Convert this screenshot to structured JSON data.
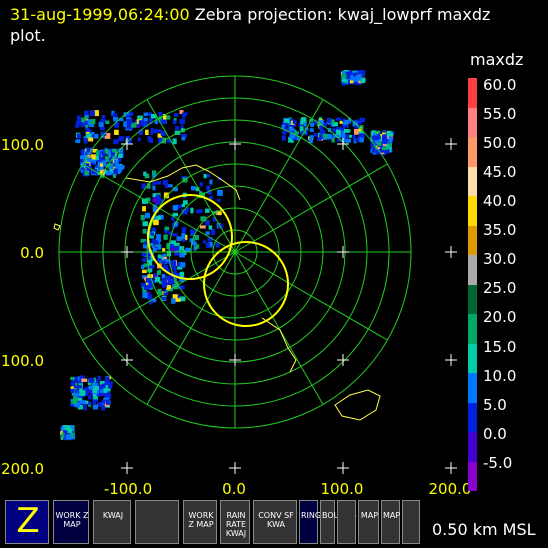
{
  "header": {
    "timestamp": "31-aug-1999,06:24:00",
    "title": "Zebra projection: kwaj_lowprf maxdz",
    "title_line2": "plot."
  },
  "axes": {
    "y_labels": [
      "100.0",
      "0.0",
      "100.0",
      "200.0"
    ],
    "x_labels": [
      "-100.0",
      "0.0",
      "100.0",
      "200.0"
    ]
  },
  "colorbar": {
    "title": "maxdz",
    "labels": [
      "60.0",
      "55.0",
      "50.0",
      "45.0",
      "40.0",
      "35.0",
      "30.0",
      "25.0",
      "20.0",
      "15.0",
      "10.0",
      "5.0",
      "0.0",
      "-5.0"
    ],
    "colors": [
      "#ff4040",
      "#ff8080",
      "#ff9966",
      "#ffddaa",
      "#ffdd00",
      "#dd9900",
      "#aaaaaa",
      "#006633",
      "#00aa66",
      "#00ccaa",
      "#0077ff",
      "#0022dd",
      "#4400cc",
      "#8800cc"
    ]
  },
  "buttonbar": {
    "buttons": [
      {
        "name": "zebra-logo-button",
        "label": "Z"
      },
      {
        "name": "work-z-map-button",
        "label": "WORK Z MAP"
      },
      {
        "name": "kwaj-grid-button",
        "label": "KWAJ"
      },
      {
        "name": "radar-sweep-button",
        "label": ""
      },
      {
        "name": "work-z-map2-button",
        "label": "WORK Z MAP"
      },
      {
        "name": "rain-rate-button",
        "label": "RAIN RATE KWAJ"
      },
      {
        "name": "conv-sf-button",
        "label": "CONV SF KWA"
      },
      {
        "name": "rings-button",
        "label": "RINGS"
      },
      {
        "name": "bounds-button",
        "label": "BOUNDS"
      },
      {
        "name": "grid-button",
        "label": ""
      },
      {
        "name": "map-button",
        "label": "MAP"
      },
      {
        "name": "map2-button",
        "label": "MAP"
      },
      {
        "name": "loop-button",
        "label": ""
      }
    ],
    "status": "0.50 km MSL"
  }
}
